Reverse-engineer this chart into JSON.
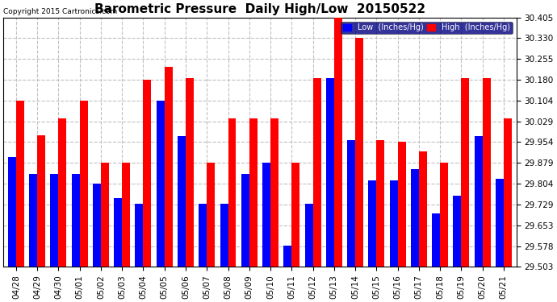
{
  "title": "Barometric Pressure  Daily High/Low  20150522",
  "copyright": "Copyright 2015 Cartronics.com",
  "dates": [
    "04/28",
    "04/29",
    "04/30",
    "05/01",
    "05/02",
    "05/03",
    "05/04",
    "05/05",
    "05/06",
    "05/07",
    "05/08",
    "05/09",
    "05/10",
    "05/11",
    "05/12",
    "05/13",
    "05/14",
    "05/15",
    "05/16",
    "05/17",
    "05/18",
    "05/19",
    "05/20",
    "05/21"
  ],
  "low_values": [
    29.9,
    29.84,
    29.84,
    29.84,
    29.805,
    29.75,
    29.73,
    30.105,
    29.975,
    29.73,
    29.73,
    29.84,
    29.88,
    29.58,
    29.73,
    30.185,
    29.96,
    29.815,
    29.815,
    29.855,
    29.695,
    29.76,
    29.975,
    29.82
  ],
  "high_values": [
    30.105,
    29.98,
    30.04,
    30.105,
    29.88,
    29.88,
    30.18,
    30.225,
    30.185,
    29.88,
    30.04,
    30.04,
    30.04,
    29.88,
    30.185,
    30.405,
    30.33,
    29.96,
    29.955,
    29.92,
    29.88,
    30.185,
    30.185,
    30.04
  ],
  "low_color": "#0000ff",
  "high_color": "#ff0000",
  "background_color": "#ffffff",
  "grid_color": "#c0c0c0",
  "ylim_min": 29.503,
  "ylim_max": 30.405,
  "yticks": [
    29.503,
    29.578,
    29.653,
    29.729,
    29.804,
    29.879,
    29.954,
    30.029,
    30.104,
    30.18,
    30.255,
    30.33,
    30.405
  ],
  "legend_low_label": "Low  (Inches/Hg)",
  "legend_high_label": "High  (Inches/Hg)",
  "title_fontsize": 11,
  "tick_fontsize": 7.5,
  "bar_width": 0.38
}
